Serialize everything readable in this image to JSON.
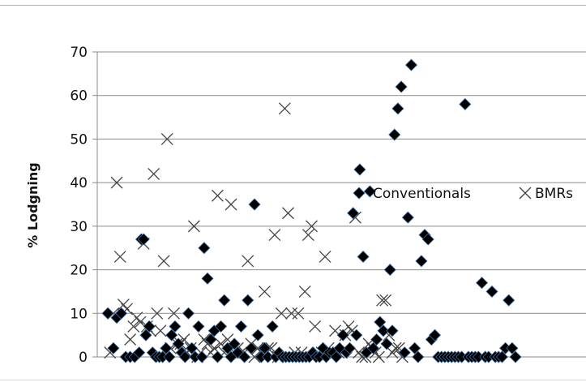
{
  "chart_data": {
    "type": "scatter",
    "title": "",
    "xlabel": "",
    "ylabel": "% Lodgning",
    "ylim": [
      0,
      70
    ],
    "yticks": [
      0,
      10,
      20,
      30,
      40,
      50,
      60,
      70
    ],
    "grid": "horizontal",
    "legend": "inside-right",
    "series": [
      {
        "name": "Conventionals",
        "marker": "diamond",
        "color": "#000000",
        "points": [
          [
            0,
            10
          ],
          [
            5,
            2
          ],
          [
            8,
            9
          ],
          [
            12,
            10
          ],
          [
            16,
            0
          ],
          [
            20,
            0
          ],
          [
            24,
            0
          ],
          [
            28,
            1
          ],
          [
            30,
            27
          ],
          [
            32,
            27
          ],
          [
            34,
            5
          ],
          [
            37,
            7
          ],
          [
            40,
            1
          ],
          [
            43,
            0
          ],
          [
            46,
            0
          ],
          [
            49,
            0
          ],
          [
            52,
            2
          ],
          [
            55,
            0
          ],
          [
            57,
            5
          ],
          [
            60,
            7
          ],
          [
            63,
            3
          ],
          [
            66,
            1
          ],
          [
            69,
            0
          ],
          [
            72,
            10
          ],
          [
            75,
            2
          ],
          [
            78,
            0
          ],
          [
            81,
            7
          ],
          [
            84,
            0
          ],
          [
            86,
            25
          ],
          [
            89,
            18
          ],
          [
            92,
            4
          ],
          [
            95,
            6
          ],
          [
            98,
            0
          ],
          [
            101,
            7
          ],
          [
            104,
            13
          ],
          [
            107,
            2
          ],
          [
            110,
            0
          ],
          [
            113,
            3
          ],
          [
            116,
            1
          ],
          [
            119,
            7
          ],
          [
            122,
            0
          ],
          [
            125,
            13
          ],
          [
            128,
            2
          ],
          [
            131,
            35
          ],
          [
            134,
            5
          ],
          [
            137,
            0
          ],
          [
            140,
            2
          ],
          [
            143,
            0
          ],
          [
            147,
            7
          ],
          [
            150,
            0
          ],
          [
            153,
            1
          ],
          [
            156,
            0
          ],
          [
            159,
            0
          ],
          [
            162,
            0
          ],
          [
            165,
            0
          ],
          [
            168,
            0
          ],
          [
            171,
            0
          ],
          [
            174,
            0
          ],
          [
            177,
            0
          ],
          [
            180,
            0
          ],
          [
            183,
            1
          ],
          [
            186,
            0
          ],
          [
            189,
            0
          ],
          [
            192,
            2
          ],
          [
            195,
            0
          ],
          [
            198,
            1
          ],
          [
            201,
            1
          ],
          [
            204,
            0
          ],
          [
            207,
            2
          ],
          [
            210,
            5
          ],
          [
            213,
            1
          ],
          [
            216,
            2
          ],
          [
            219,
            33
          ],
          [
            222,
            5
          ],
          [
            225,
            43
          ],
          [
            228,
            23
          ],
          [
            231,
            1
          ],
          [
            234,
            38
          ],
          [
            237,
            2
          ],
          [
            240,
            4
          ],
          [
            243,
            8
          ],
          [
            246,
            6
          ],
          [
            249,
            3
          ],
          [
            252,
            20
          ],
          [
            254,
            6
          ],
          [
            256,
            51
          ],
          [
            259,
            57
          ],
          [
            262,
            62
          ],
          [
            265,
            1
          ],
          [
            268,
            32
          ],
          [
            271,
            67
          ],
          [
            274,
            2
          ],
          [
            277,
            0
          ],
          [
            280,
            22
          ],
          [
            283,
            28
          ],
          [
            286,
            27
          ],
          [
            289,
            4
          ],
          [
            292,
            5
          ],
          [
            295,
            0
          ],
          [
            298,
            0
          ],
          [
            301,
            0
          ],
          [
            304,
            0
          ],
          [
            307,
            0
          ],
          [
            310,
            0
          ],
          [
            313,
            0
          ],
          [
            316,
            0
          ],
          [
            319,
            58
          ],
          [
            322,
            0
          ],
          [
            325,
            0
          ],
          [
            328,
            0
          ],
          [
            331,
            0
          ],
          [
            334,
            17
          ],
          [
            337,
            0
          ],
          [
            340,
            0
          ],
          [
            343,
            15
          ],
          [
            346,
            0
          ],
          [
            349,
            0
          ],
          [
            352,
            0
          ],
          [
            355,
            2
          ],
          [
            358,
            13
          ],
          [
            361,
            2
          ],
          [
            364,
            0
          ]
        ]
      },
      {
        "name": "BMRs",
        "marker": "x",
        "color": "#444444",
        "points": [
          [
            2,
            1
          ],
          [
            5,
            10
          ],
          [
            8,
            40
          ],
          [
            11,
            23
          ],
          [
            14,
            12
          ],
          [
            17,
            11
          ],
          [
            20,
            4
          ],
          [
            23,
            7
          ],
          [
            26,
            9
          ],
          [
            29,
            8
          ],
          [
            32,
            26
          ],
          [
            35,
            7
          ],
          [
            38,
            6
          ],
          [
            41,
            42
          ],
          [
            44,
            10
          ],
          [
            47,
            6
          ],
          [
            50,
            22
          ],
          [
            53,
            50
          ],
          [
            56,
            2
          ],
          [
            59,
            10
          ],
          [
            62,
            3
          ],
          [
            65,
            3
          ],
          [
            68,
            4
          ],
          [
            71,
            1
          ],
          [
            74,
            2
          ],
          [
            77,
            30
          ],
          [
            80,
            0
          ],
          [
            83,
            1
          ],
          [
            86,
            4
          ],
          [
            89,
            3
          ],
          [
            92,
            1
          ],
          [
            95,
            2
          ],
          [
            98,
            37
          ],
          [
            101,
            3
          ],
          [
            104,
            1
          ],
          [
            107,
            4
          ],
          [
            110,
            35
          ],
          [
            113,
            1
          ],
          [
            116,
            2
          ],
          [
            119,
            1
          ],
          [
            122,
            1
          ],
          [
            125,
            22
          ],
          [
            128,
            3
          ],
          [
            131,
            0
          ],
          [
            134,
            2
          ],
          [
            137,
            1
          ],
          [
            140,
            15
          ],
          [
            143,
            2
          ],
          [
            146,
            2
          ],
          [
            149,
            28
          ],
          [
            152,
            0
          ],
          [
            155,
            10
          ],
          [
            158,
            57
          ],
          [
            161,
            33
          ],
          [
            164,
            10
          ],
          [
            167,
            1
          ],
          [
            170,
            10
          ],
          [
            173,
            1
          ],
          [
            176,
            15
          ],
          [
            179,
            28
          ],
          [
            182,
            30
          ],
          [
            185,
            7
          ],
          [
            188,
            1
          ],
          [
            191,
            1
          ],
          [
            194,
            23
          ],
          [
            197,
            2
          ],
          [
            200,
            1
          ],
          [
            203,
            6
          ],
          [
            206,
            1
          ],
          [
            209,
            1
          ],
          [
            212,
            5
          ],
          [
            215,
            7
          ],
          [
            218,
            6
          ],
          [
            221,
            32
          ],
          [
            224,
            1
          ],
          [
            227,
            0
          ],
          [
            230,
            0
          ],
          [
            233,
            3
          ],
          [
            236,
            2
          ],
          [
            239,
            1
          ],
          [
            242,
            0
          ],
          [
            245,
            13
          ],
          [
            248,
            13
          ],
          [
            251,
            5
          ],
          [
            254,
            1
          ],
          [
            257,
            2
          ],
          [
            260,
            2
          ],
          [
            263,
            0
          ]
        ]
      }
    ]
  }
}
